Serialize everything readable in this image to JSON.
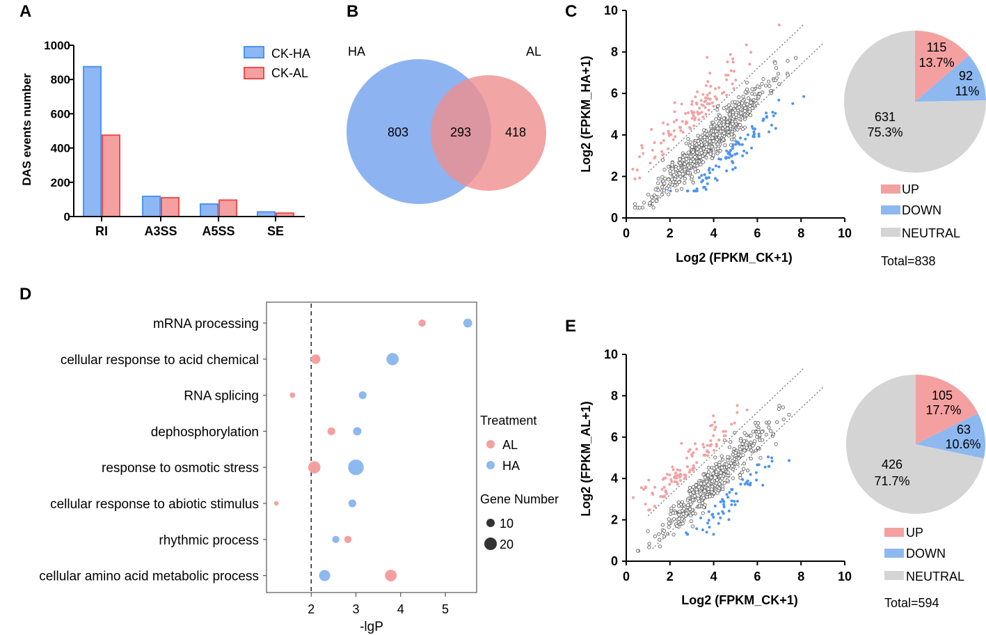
{
  "panel_letters": [
    "A",
    "B",
    "C",
    "D",
    "E"
  ],
  "colors": {
    "blue": "#4d94f0",
    "blue_fill": "#8db8f3",
    "red": "#ee4d4d",
    "red_fill": "#f4a0a0",
    "grey": "#777777",
    "pie_blue": "#8db8f0",
    "pie_red": "#f4a0a0",
    "pie_grey": "#d4d4d4",
    "venn_blue": "#7aa6ee",
    "venn_red": "#ef8f8f"
  },
  "chart_data": [
    {
      "id": "A",
      "type": "bar",
      "ylabel": "DAS events number",
      "categories": [
        "RI",
        "A3SS",
        "A5SS",
        "SE"
      ],
      "ylim": [
        0,
        1000
      ],
      "yticks": [
        0,
        200,
        400,
        600,
        800,
        1000
      ],
      "legend": [
        "CK-HA",
        "CK-AL"
      ],
      "series": [
        {
          "name": "CK-HA",
          "values": [
            875,
            118,
            73,
            27
          ]
        },
        {
          "name": "CK-AL",
          "values": [
            475,
            110,
            96,
            20
          ]
        }
      ]
    },
    {
      "id": "B",
      "type": "venn",
      "sets": [
        "HA",
        "AL"
      ],
      "only_left": "803",
      "intersection": "293",
      "only_right": "418"
    },
    {
      "id": "C",
      "type": "scatter",
      "xlabel": "Log2 (FPKM_CK+1)",
      "ylabel": "Log2  (FPKM_HA+1)",
      "xlim": [
        0,
        10
      ],
      "ylim": [
        0,
        10
      ],
      "xticks": [
        0,
        2,
        4,
        6,
        8,
        10
      ],
      "yticks": [
        0,
        2,
        4,
        6,
        8,
        10
      ],
      "counts": {
        "up": 115,
        "down": 92,
        "neutral": 631
      },
      "seed": 11
    },
    {
      "id": "C-pie",
      "type": "pie",
      "slices": [
        {
          "name": "UP",
          "value": 115,
          "label1": "115",
          "label2": "13.7%"
        },
        {
          "name": "DOWN",
          "value": 92,
          "label1": "92",
          "label2": "11%"
        },
        {
          "name": "NEUTRAL",
          "value": 631,
          "label1": "631",
          "label2": "75.3%"
        }
      ],
      "legend": [
        "UP",
        "DOWN",
        "NEUTRAL"
      ],
      "total": "Total=838"
    },
    {
      "id": "D",
      "type": "bubble",
      "xlabel": "-lgP",
      "xticks": [
        2,
        3,
        4,
        5
      ],
      "xlim": [
        1.0,
        5.7
      ],
      "threshold": 2,
      "categories": [
        "mRNA processing",
        "cellular response to acid chemical",
        "RNA splicing",
        "dephosphorylation",
        "response to osmotic stress",
        "cellular response to abiotic stimulus",
        "rhythmic process",
        "cellular amino acid metabolic process"
      ],
      "series": [
        {
          "name": "AL",
          "points": [
            [
              4.48,
              8
            ],
            [
              2.1,
              12
            ],
            [
              1.58,
              5
            ],
            [
              2.45,
              9
            ],
            [
              2.07,
              17
            ],
            [
              1.22,
              3
            ],
            [
              2.82,
              8
            ],
            [
              3.78,
              16
            ]
          ]
        },
        {
          "name": "HA",
          "points": [
            [
              5.5,
              11
            ],
            [
              3.82,
              17
            ],
            [
              3.15,
              9
            ],
            [
              3.03,
              10
            ],
            [
              3.0,
              23
            ],
            [
              2.92,
              9
            ],
            [
              2.55,
              8
            ],
            [
              2.3,
              15
            ]
          ]
        }
      ],
      "legend_title": "Treatment",
      "legend": [
        "AL",
        "HA"
      ],
      "size_title": "Gene Number",
      "size_legend": [
        "10",
        "20"
      ]
    },
    {
      "id": "E",
      "type": "scatter",
      "xlabel": "Log2 (FPKM_CK+1)",
      "ylabel": "Log2  (FPKM_AL+1)",
      "xlim": [
        0,
        10
      ],
      "ylim": [
        0,
        10
      ],
      "xticks": [
        0,
        2,
        4,
        6,
        8,
        10
      ],
      "yticks": [
        0,
        2,
        4,
        6,
        8,
        10
      ],
      "counts": {
        "up": 105,
        "down": 63,
        "neutral": 426
      },
      "seed": 29
    },
    {
      "id": "E-pie",
      "type": "pie",
      "slices": [
        {
          "name": "UP",
          "value": 105,
          "label1": "105",
          "label2": "17.7%"
        },
        {
          "name": "DOWN",
          "value": 63,
          "label1": "63",
          "label2": "10.6%"
        },
        {
          "name": "NEUTRAL",
          "value": 426,
          "label1": "426",
          "label2": "71.7%"
        }
      ],
      "legend": [
        "UP",
        "DOWN",
        "NEUTRAL"
      ],
      "total": "Total=594"
    }
  ]
}
